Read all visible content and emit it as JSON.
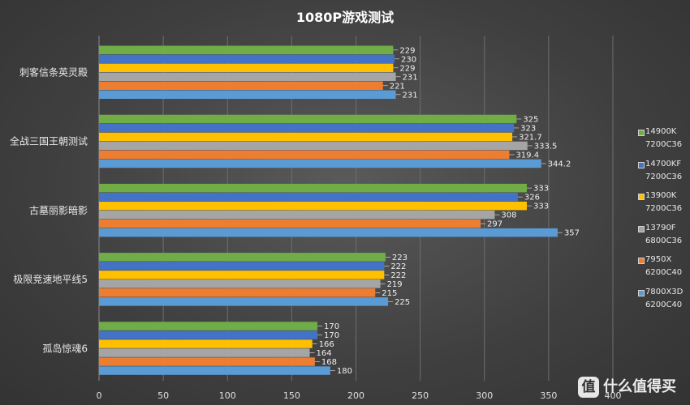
{
  "chart_data": {
    "type": "bar",
    "orientation": "horizontal",
    "title": "1080P游戏测试",
    "categories": [
      "刺客信条英灵殿",
      "全战三国王朝测试",
      "古墓丽影暗影",
      "极限竞速地平线5",
      "孤岛惊魂6"
    ],
    "series": [
      {
        "name": "14900K 7200C36",
        "name_lines": [
          "14900K",
          "7200C36"
        ],
        "color": "#70ad47",
        "values": [
          229,
          325,
          333,
          223,
          170
        ],
        "labels": [
          "229",
          "325",
          "333",
          "223",
          "170"
        ]
      },
      {
        "name": "14700KF 7200C36",
        "name_lines": [
          "14700KF",
          "7200C36"
        ],
        "color": "#4472c4",
        "values": [
          230,
          323,
          326,
          222,
          170
        ],
        "labels": [
          "230",
          "323",
          "326",
          "222",
          "170"
        ]
      },
      {
        "name": "13900K 7200C36",
        "name_lines": [
          "13900K",
          "7200C36"
        ],
        "color": "#ffc000",
        "values": [
          229,
          321.7,
          333,
          222,
          166
        ],
        "labels": [
          "229",
          "321.7",
          "333",
          "222",
          "166"
        ]
      },
      {
        "name": "13790F 6800C36",
        "name_lines": [
          "13790F",
          "6800C36"
        ],
        "color": "#a5a5a5",
        "values": [
          231,
          333.5,
          308,
          219,
          164
        ],
        "labels": [
          "231",
          "333.5",
          "308",
          "219",
          "164"
        ]
      },
      {
        "name": "7950X 6200C40",
        "name_lines": [
          "7950X",
          "6200C40"
        ],
        "color": "#ed7d31",
        "values": [
          221,
          319.4,
          297,
          215,
          168
        ],
        "labels": [
          "221",
          "319.4",
          "297",
          "215",
          "168"
        ]
      },
      {
        "name": "7800X3D 6200C40",
        "name_lines": [
          "7800X3D",
          "6200C40"
        ],
        "color": "#5b9bd5",
        "values": [
          231,
          344.2,
          357,
          225,
          180
        ],
        "labels": [
          "231",
          "344.2",
          "357",
          "225",
          "180"
        ]
      }
    ],
    "xlim": [
      0,
      400
    ],
    "xticks": [
      "0",
      "50",
      "100",
      "150",
      "200",
      "250",
      "300",
      "350",
      "400"
    ],
    "xtick_values": [
      0,
      50,
      100,
      150,
      200,
      250,
      300,
      350,
      400
    ],
    "grid": true,
    "legend": "right"
  },
  "watermark": {
    "icon_glyph": "值",
    "text": "什么值得买"
  }
}
